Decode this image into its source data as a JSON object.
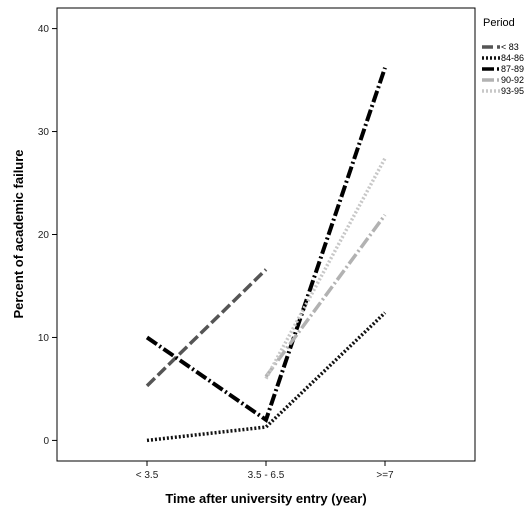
{
  "chart_data": {
    "type": "line",
    "categories": [
      "< 3.5",
      "3.5 - 6.5",
      ">=7"
    ],
    "xlabel": "Time after university entry (year)",
    "ylabel": "Percent of academic failure",
    "ylim": [
      -2,
      42
    ],
    "yticks": [
      0,
      10,
      20,
      30,
      40
    ],
    "grid": false,
    "legend": {
      "title": "Period",
      "position": "right",
      "labels": [
        "< 83",
        "84-86",
        "87-89",
        "90-92",
        "93-95"
      ]
    },
    "series": [
      {
        "name": "< 83",
        "values": [
          5.3,
          16.6,
          null
        ],
        "color": "#555555",
        "dash": "11 4",
        "width": 3.5
      },
      {
        "name": "84-86",
        "values": [
          0.0,
          1.3,
          12.4
        ],
        "color": "#111111",
        "dash": "2 2",
        "width": 3.5
      },
      {
        "name": "87-89",
        "values": [
          10.0,
          2.0,
          36.2
        ],
        "color": "#000000",
        "dash": "12 3 2 3",
        "width": 4
      },
      {
        "name": "90-92",
        "values": [
          null,
          6.2,
          21.9
        ],
        "color": "#b2b2b2",
        "dash": "12 3 2 3",
        "width": 3.5
      },
      {
        "name": "93-95",
        "values": [
          null,
          6.0,
          27.4
        ],
        "color": "#c8c8c8",
        "dash": "2 2",
        "width": 3.5
      }
    ]
  }
}
